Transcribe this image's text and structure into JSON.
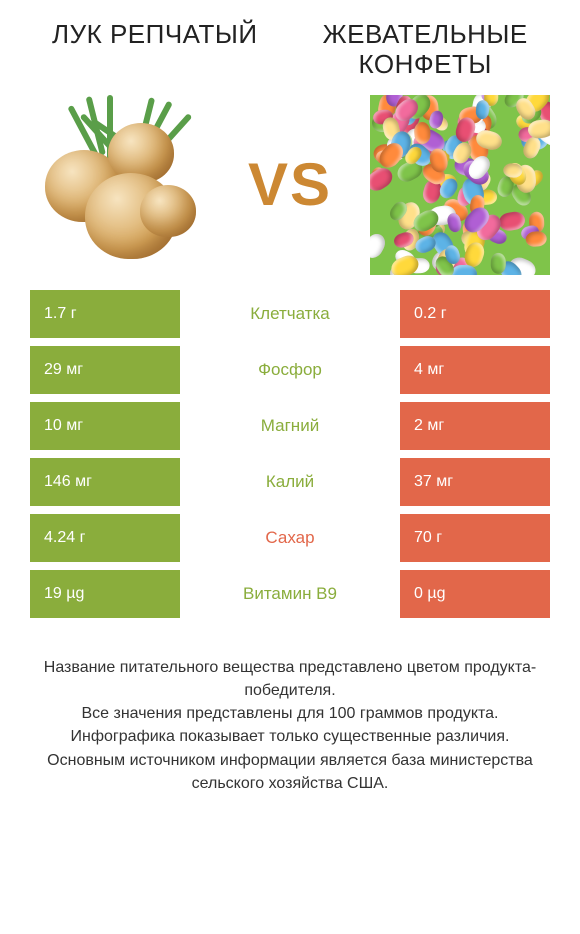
{
  "header": {
    "left": "ЛУК РЕПЧАТЫЙ",
    "right": "ЖЕВАТЕЛЬНЫЕ КОНФЕТЫ"
  },
  "vs_label": "VS",
  "colors": {
    "left": "#8aad3c",
    "right": "#e2674a",
    "vs_text": "#cc8833",
    "background": "#ffffff",
    "text": "#222222"
  },
  "table": {
    "rows": [
      {
        "left": "1.7 г",
        "label": "Клетчатка",
        "right": "0.2 г",
        "winner": "left"
      },
      {
        "left": "29 мг",
        "label": "Фосфор",
        "right": "4 мг",
        "winner": "left"
      },
      {
        "left": "10 мг",
        "label": "Магний",
        "right": "2 мг",
        "winner": "left"
      },
      {
        "left": "146 мг",
        "label": "Калий",
        "right": "37 мг",
        "winner": "left"
      },
      {
        "left": "4.24 г",
        "label": "Сахар",
        "right": "70 г",
        "winner": "right"
      },
      {
        "left": "19 µg",
        "label": "Витамин B9",
        "right": "0 µg",
        "winner": "left"
      }
    ]
  },
  "footer_lines": [
    "Название питательного вещества представлено цветом продукта-победителя.",
    "Все значения представлены для 100 граммов продукта.",
    "Инфографика показывает только существенные различия.",
    "Основным источником информации является база министерства сельского хозяйства США."
  ],
  "candy_colors": [
    "#f26b9d",
    "#ffd93b",
    "#7fc44a",
    "#ff8a3c",
    "#5db3e6",
    "#e84f73",
    "#ffffff",
    "#b05fd4",
    "#ffe08a"
  ],
  "onion_img_desc": "onions-photo",
  "candy_img_desc": "jelly-beans-photo"
}
